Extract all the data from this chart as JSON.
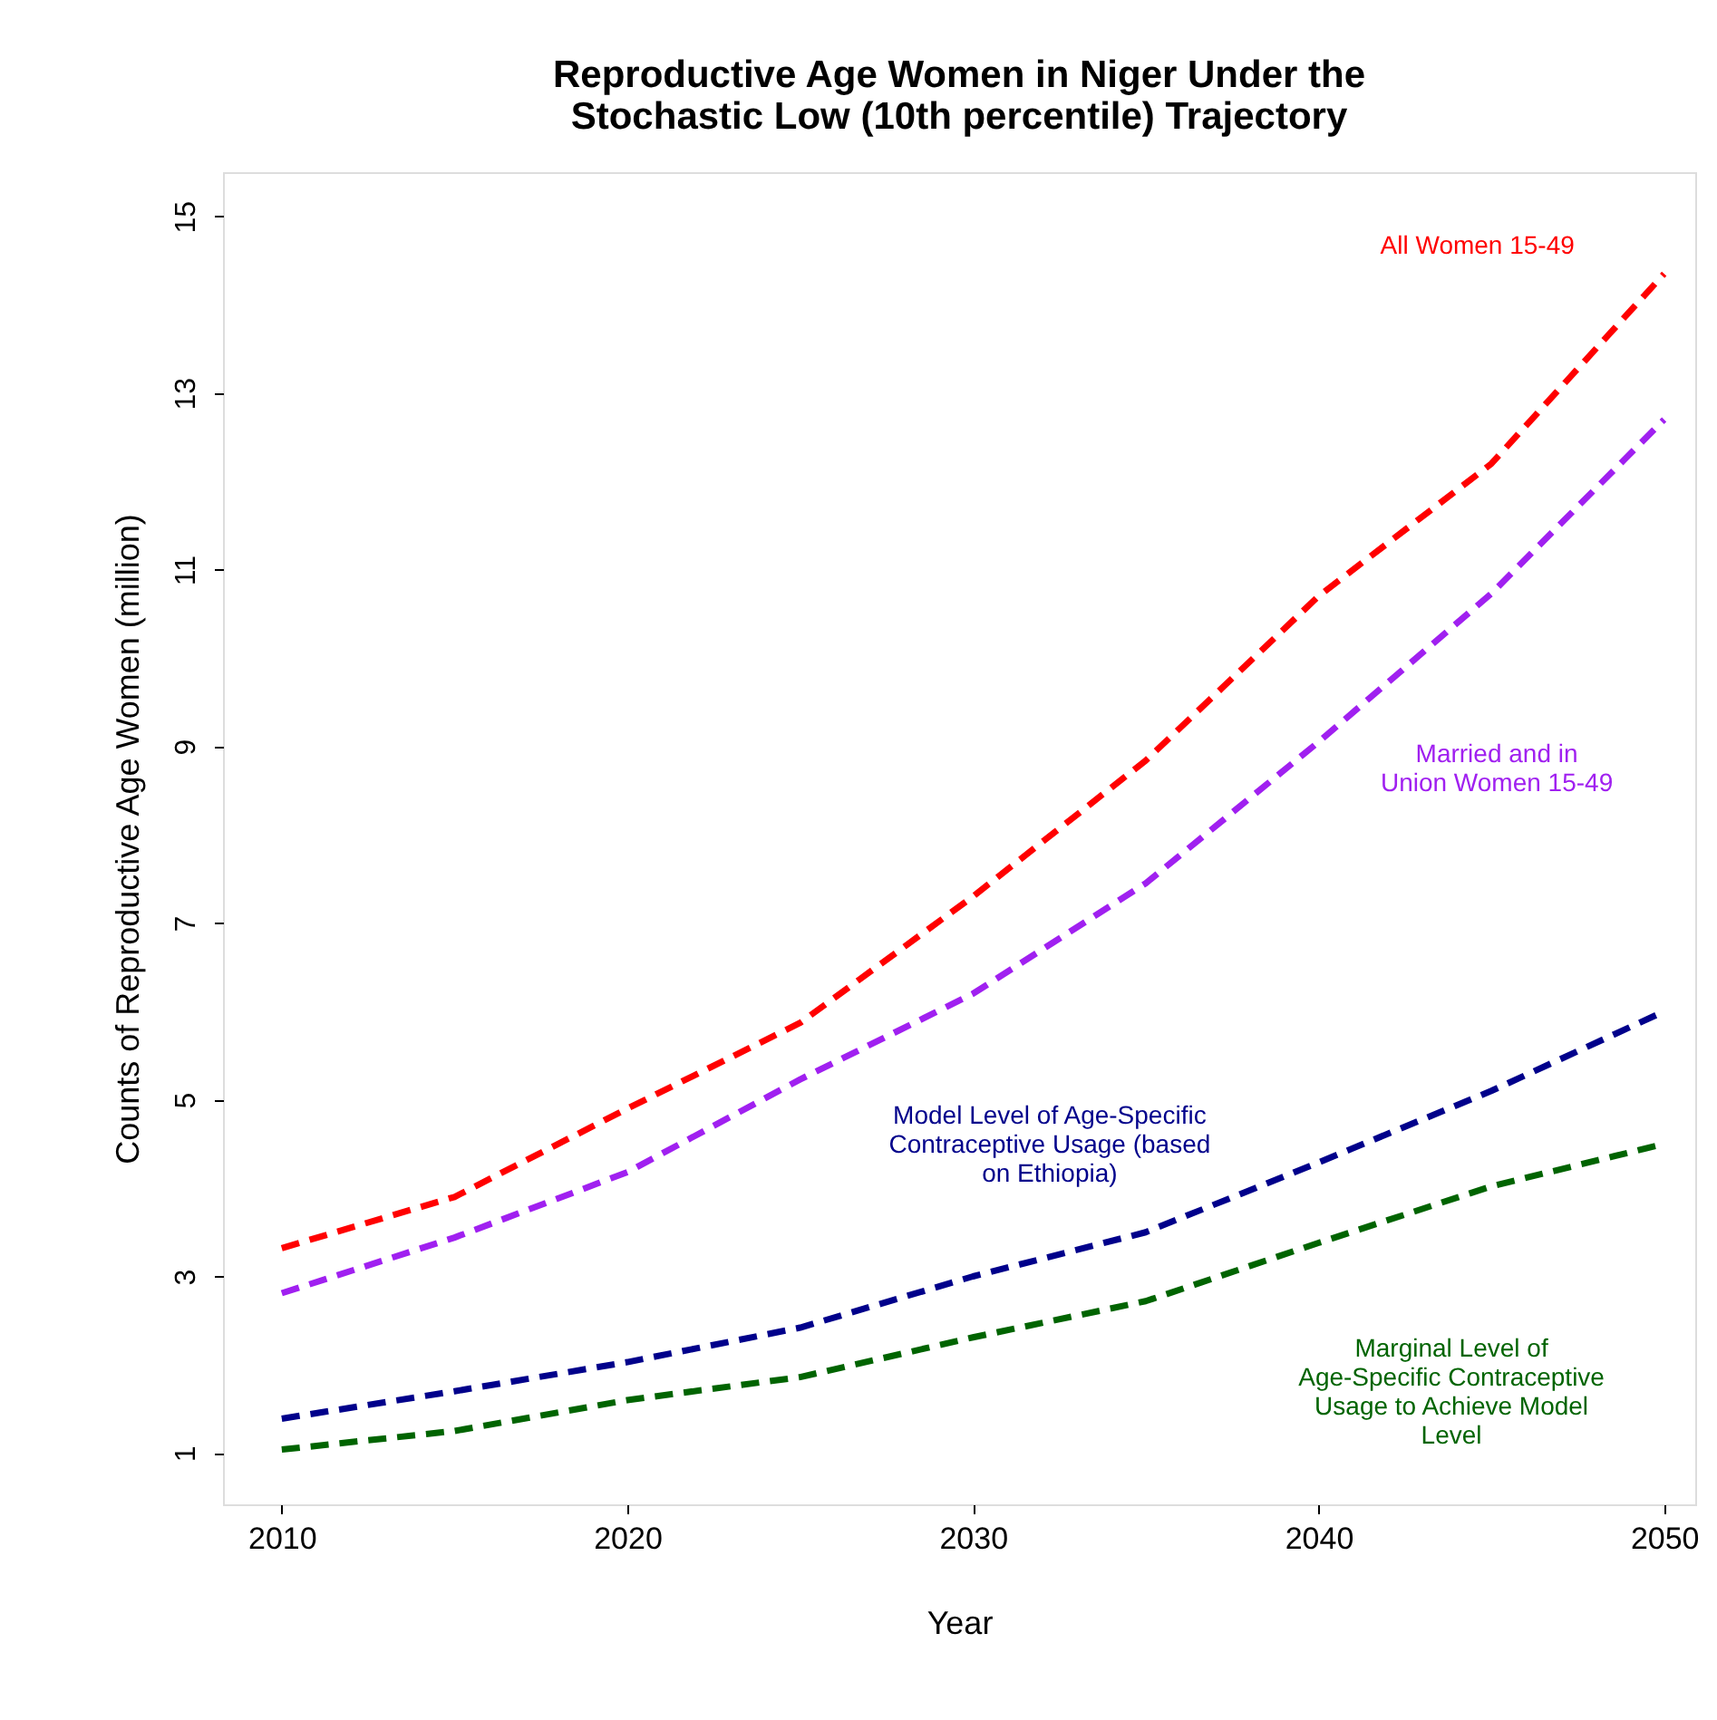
{
  "chart_data": {
    "type": "line",
    "title": "Reproductive Age Women in Niger Under the\nStochastic Low (10th percentile) Trajectory",
    "xlabel": "Year",
    "ylabel": "Counts of Reproductive Age Women (million)",
    "x": [
      2010,
      2015,
      2020,
      2025,
      2030,
      2035,
      2040,
      2045,
      2050
    ],
    "series": [
      {
        "name": "All Women 15-49",
        "color": "#ff0000",
        "values": [
          3.32,
          3.9,
          4.9,
          5.87,
          7.3,
          8.84,
          10.7,
          12.2,
          14.35
        ]
      },
      {
        "name": "Married and in\nUnion Women 15-49",
        "color": "#a020f0",
        "values": [
          2.81,
          3.44,
          4.18,
          5.23,
          6.2,
          7.45,
          9.05,
          10.73,
          12.7
        ]
      },
      {
        "name": "Model Level of Age-Specific\nContraceptive Usage (based\non Ethiopia)",
        "color": "#00008b",
        "values": [
          1.39,
          1.7,
          2.03,
          2.42,
          3.0,
          3.5,
          4.29,
          5.1,
          6.0
        ]
      },
      {
        "name": "Marginal Level of\nAge-Specific Contraceptive\nUsage to Achieve Model\nLevel",
        "color": "#006400",
        "values": [
          1.04,
          1.25,
          1.6,
          1.86,
          2.31,
          2.72,
          3.38,
          4.02,
          4.5
        ]
      }
    ],
    "xlim": [
      2008.3,
      2050.9
    ],
    "xticks": [
      2010,
      2020,
      2030,
      2040,
      2050
    ],
    "ylim": [
      0.42,
      15.5
    ],
    "yticks": [
      1,
      3,
      5,
      7,
      9,
      11,
      13,
      15
    ],
    "grid": false,
    "marker": "none",
    "line_style": "dashed"
  }
}
